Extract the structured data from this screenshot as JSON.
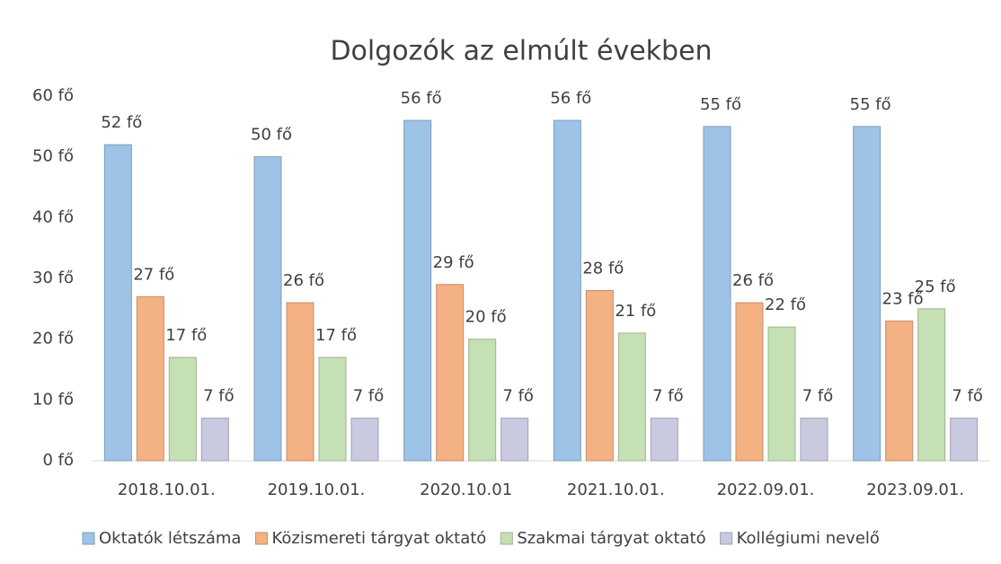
{
  "chart_data": {
    "type": "bar",
    "title": "Dolgozók az elmúlt években",
    "categories": [
      "2018.10.01.",
      "2019.10.01.",
      "2020.10.01",
      "2021.10.01.",
      "2022.09.01.",
      "2023.09.01."
    ],
    "series": [
      {
        "name": "Oktatók létszáma",
        "color": "#9dc3e6",
        "values": [
          52,
          50,
          56,
          56,
          55,
          55
        ],
        "value_labels": [
          "52 fő",
          "50 fő",
          "56 fő",
          "56 fő",
          "55 fő",
          "55 fő"
        ]
      },
      {
        "name": "Közismereti tárgyat oktató",
        "color": "#f4b183",
        "values": [
          27,
          26,
          29,
          28,
          26,
          23
        ],
        "value_labels": [
          "27 fő",
          "26 fő",
          "29 fő",
          "28 fő",
          "26 fő",
          "23 fő"
        ]
      },
      {
        "name": "Szakmai tárgyat oktató",
        "color": "#c5e0b4",
        "values": [
          17,
          17,
          20,
          21,
          22,
          25
        ],
        "value_labels": [
          "17 fő",
          "17 fő",
          "20 fő",
          "21 fő",
          "22 fő",
          "25 fő"
        ]
      },
      {
        "name": "Kollégiumi nevelő",
        "color": "#c9c9e0",
        "values": [
          7,
          7,
          7,
          7,
          7,
          7
        ],
        "value_labels": [
          "7 fő",
          "7 fő",
          "7 fő",
          "7 fő",
          "7 fő",
          "7 fő"
        ]
      }
    ],
    "ylim": [
      0,
      60
    ],
    "yticks": [
      {
        "value": 0,
        "label": "0 fő"
      },
      {
        "value": 10,
        "label": "10 fő"
      },
      {
        "value": 20,
        "label": "20 fő"
      },
      {
        "value": 30,
        "label": "30 fő"
      },
      {
        "value": 40,
        "label": "40 fő"
      },
      {
        "value": 50,
        "label": "50 fő"
      },
      {
        "value": 60,
        "label": "60 fő"
      }
    ],
    "grid": false,
    "legend": "bottom"
  }
}
